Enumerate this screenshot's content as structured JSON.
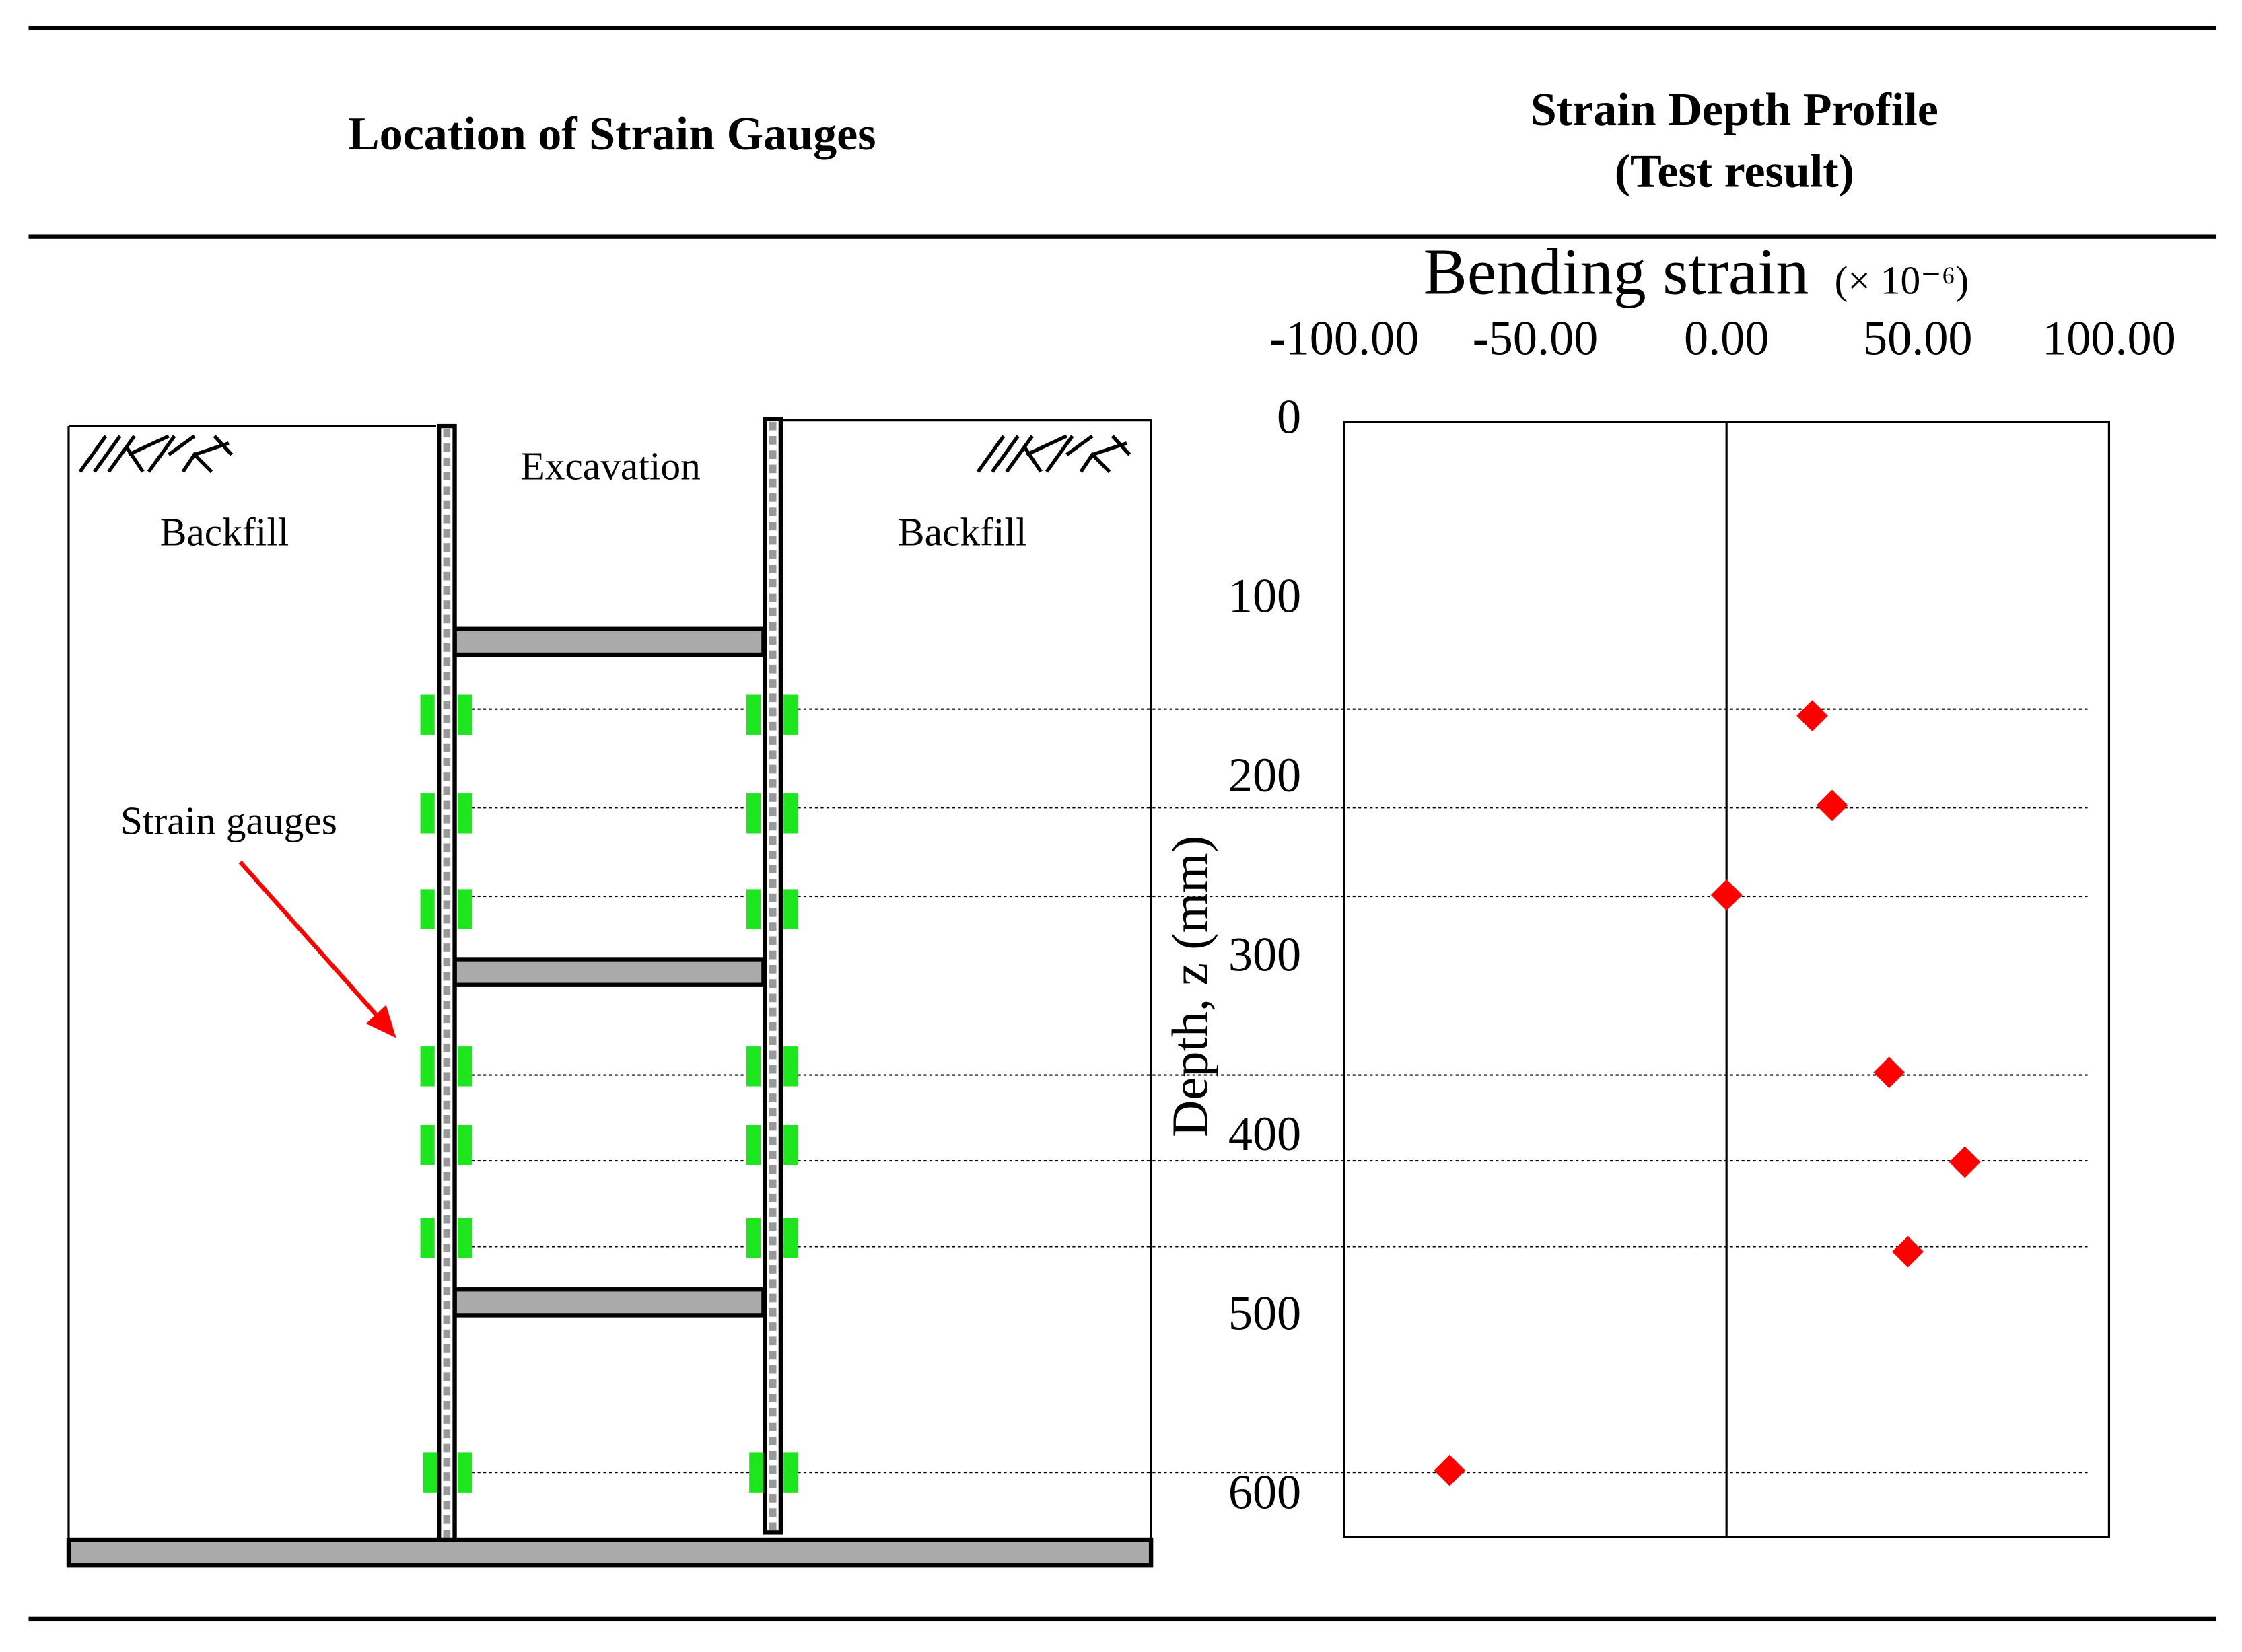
{
  "header": {
    "left_title": "Location of Strain Gauges",
    "right_title": [
      "Strain Depth Profile",
      "(Test result)"
    ]
  },
  "diagram": {
    "left_label": "Backfill",
    "center_label": "Excavation",
    "right_label": "Backfill",
    "arrow_label": "Strain gauges"
  },
  "chart_data": {
    "type": "scatter",
    "x_label": "Bending strain",
    "x_unit": "(× 10⁻⁶)",
    "y_label": "Depth, z (mm)",
    "x": [
      22.4,
      27.6,
      0,
      42.5,
      62.3,
      47.4,
      -72.4
    ],
    "y": [
      164,
      214,
      264,
      363,
      413,
      463,
      585
    ],
    "color": "#ff0000",
    "marker": "diamond",
    "xlim": [
      -100,
      100
    ],
    "xticks": [
      {
        "value": -100,
        "label": "-100.00"
      },
      {
        "value": -50,
        "label": "-50.00"
      },
      {
        "value": 0,
        "label": "0.00"
      },
      {
        "value": 50,
        "label": "50.00"
      },
      {
        "value": 100,
        "label": "100.00"
      }
    ],
    "ylim": [
      0,
      622
    ],
    "y_inverted": true,
    "yticks": [
      0,
      100,
      200,
      300,
      400,
      500,
      600
    ],
    "zero_line": true,
    "grid": false
  }
}
